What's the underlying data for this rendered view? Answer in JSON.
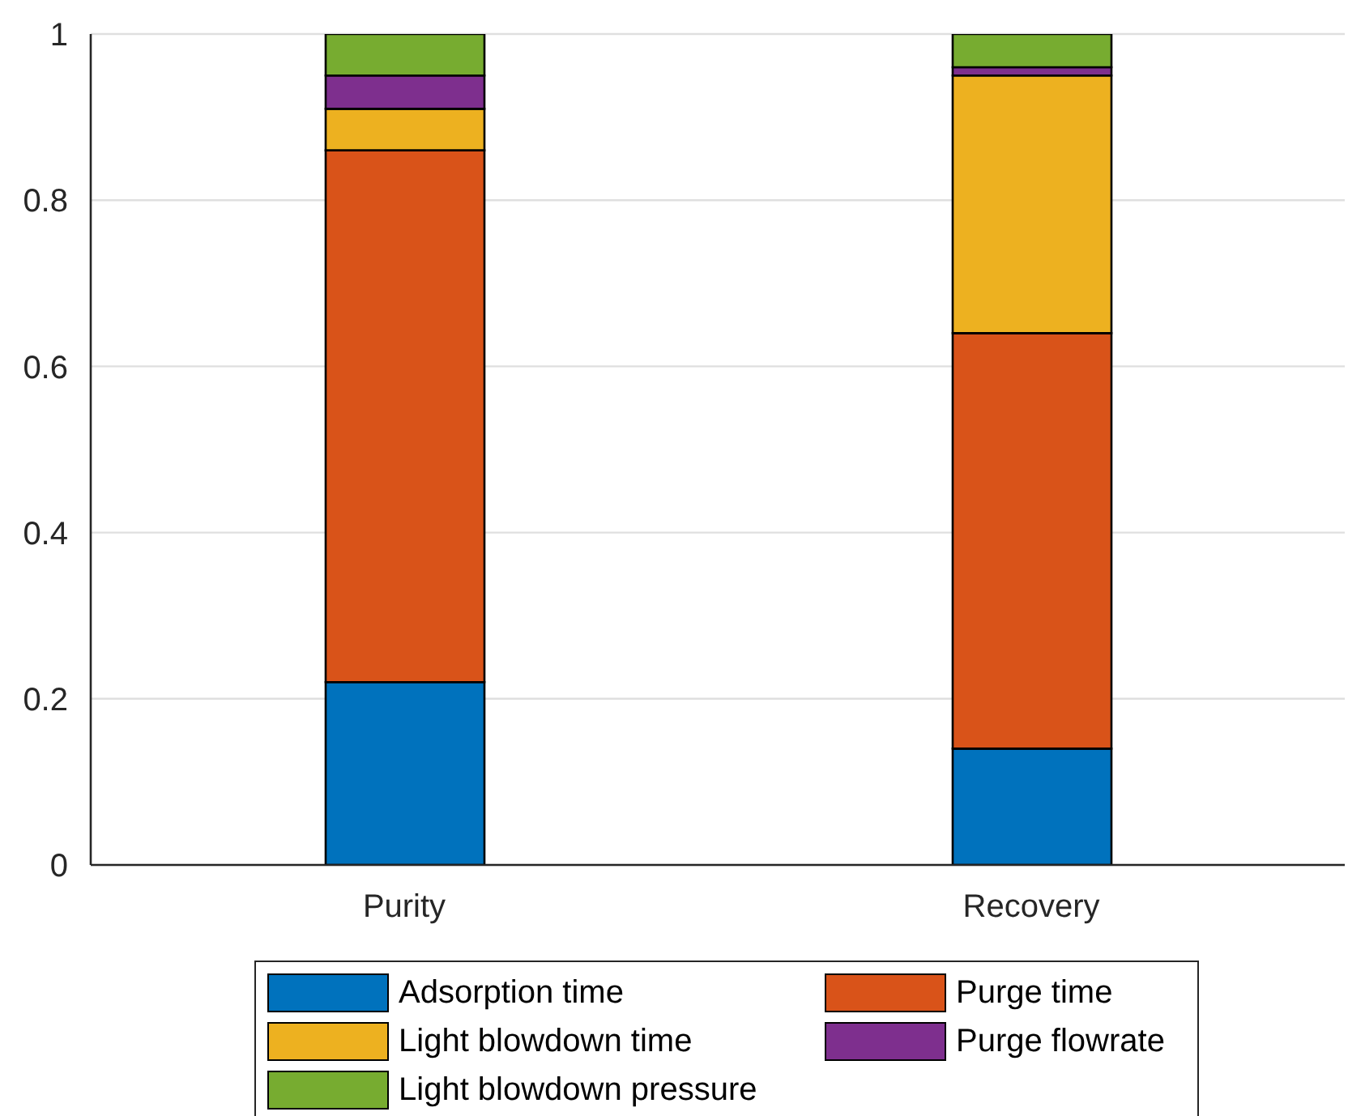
{
  "chart_data": {
    "type": "bar",
    "stacked": true,
    "categories": [
      "Purity",
      "Recovery"
    ],
    "series": [
      {
        "name": "Adsorption time",
        "color": "#0072bd",
        "values": [
          0.22,
          0.14
        ]
      },
      {
        "name": "Purge time",
        "color": "#d95319",
        "values": [
          0.64,
          0.5
        ]
      },
      {
        "name": "Light blowdown time",
        "color": "#edb120",
        "values": [
          0.05,
          0.31
        ]
      },
      {
        "name": "Purge flowrate",
        "color": "#7e2f8e",
        "values": [
          0.04,
          0.01
        ]
      },
      {
        "name": "Light blowdown pressure",
        "color": "#77ac30",
        "values": [
          0.05,
          0.04
        ]
      }
    ],
    "ylim": [
      0,
      1
    ],
    "yticks": [
      0,
      0.2,
      0.4,
      0.6,
      0.8,
      1
    ],
    "grid": "y",
    "legend": "bottom"
  }
}
